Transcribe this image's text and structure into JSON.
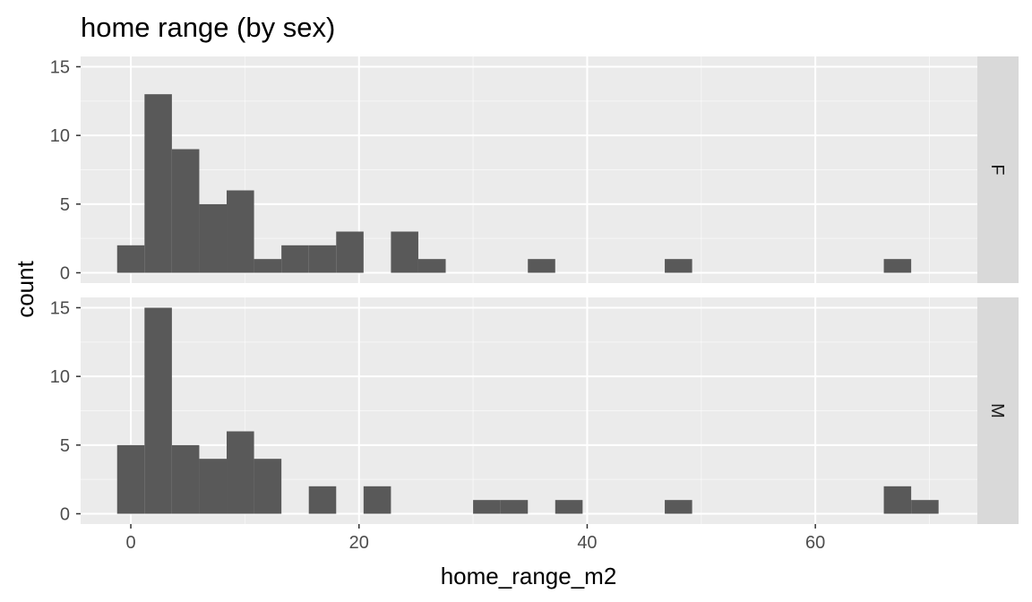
{
  "chart_data": {
    "type": "bar",
    "subtype": "faceted-histogram",
    "title": "home range (by sex)",
    "xlabel": "home_range_m2",
    "ylabel": "count",
    "xlim": [
      -4.4,
      74.2
    ],
    "ylim": [
      -0.75,
      15.75
    ],
    "x_ticks": [
      0,
      20,
      40,
      60
    ],
    "y_ticks": [
      0,
      5,
      10,
      15
    ],
    "bin_width": 2.4,
    "grid": true,
    "facets": [
      {
        "label": "F",
        "bins": [
          {
            "x": 0.0,
            "count": 2
          },
          {
            "x": 2.4,
            "count": 13
          },
          {
            "x": 4.8,
            "count": 9
          },
          {
            "x": 7.2,
            "count": 5
          },
          {
            "x": 9.6,
            "count": 6
          },
          {
            "x": 12.0,
            "count": 1
          },
          {
            "x": 14.4,
            "count": 2
          },
          {
            "x": 16.8,
            "count": 2
          },
          {
            "x": 19.2,
            "count": 3
          },
          {
            "x": 24.0,
            "count": 3
          },
          {
            "x": 26.4,
            "count": 1
          },
          {
            "x": 36.0,
            "count": 1
          },
          {
            "x": 48.0,
            "count": 1
          },
          {
            "x": 67.2,
            "count": 1
          }
        ]
      },
      {
        "label": "M",
        "bins": [
          {
            "x": 0.0,
            "count": 5
          },
          {
            "x": 2.4,
            "count": 15
          },
          {
            "x": 4.8,
            "count": 5
          },
          {
            "x": 7.2,
            "count": 4
          },
          {
            "x": 9.6,
            "count": 6
          },
          {
            "x": 12.0,
            "count": 4
          },
          {
            "x": 16.8,
            "count": 2
          },
          {
            "x": 21.6,
            "count": 2
          },
          {
            "x": 31.2,
            "count": 1
          },
          {
            "x": 33.6,
            "count": 1
          },
          {
            "x": 38.4,
            "count": 1
          },
          {
            "x": 48.0,
            "count": 1
          },
          {
            "x": 67.2,
            "count": 2
          },
          {
            "x": 69.6,
            "count": 1
          }
        ]
      }
    ],
    "colors": {
      "bar": "#595959",
      "panel": "#ebebeb",
      "strip": "#d9d9d9",
      "grid_major": "#ffffff"
    }
  }
}
